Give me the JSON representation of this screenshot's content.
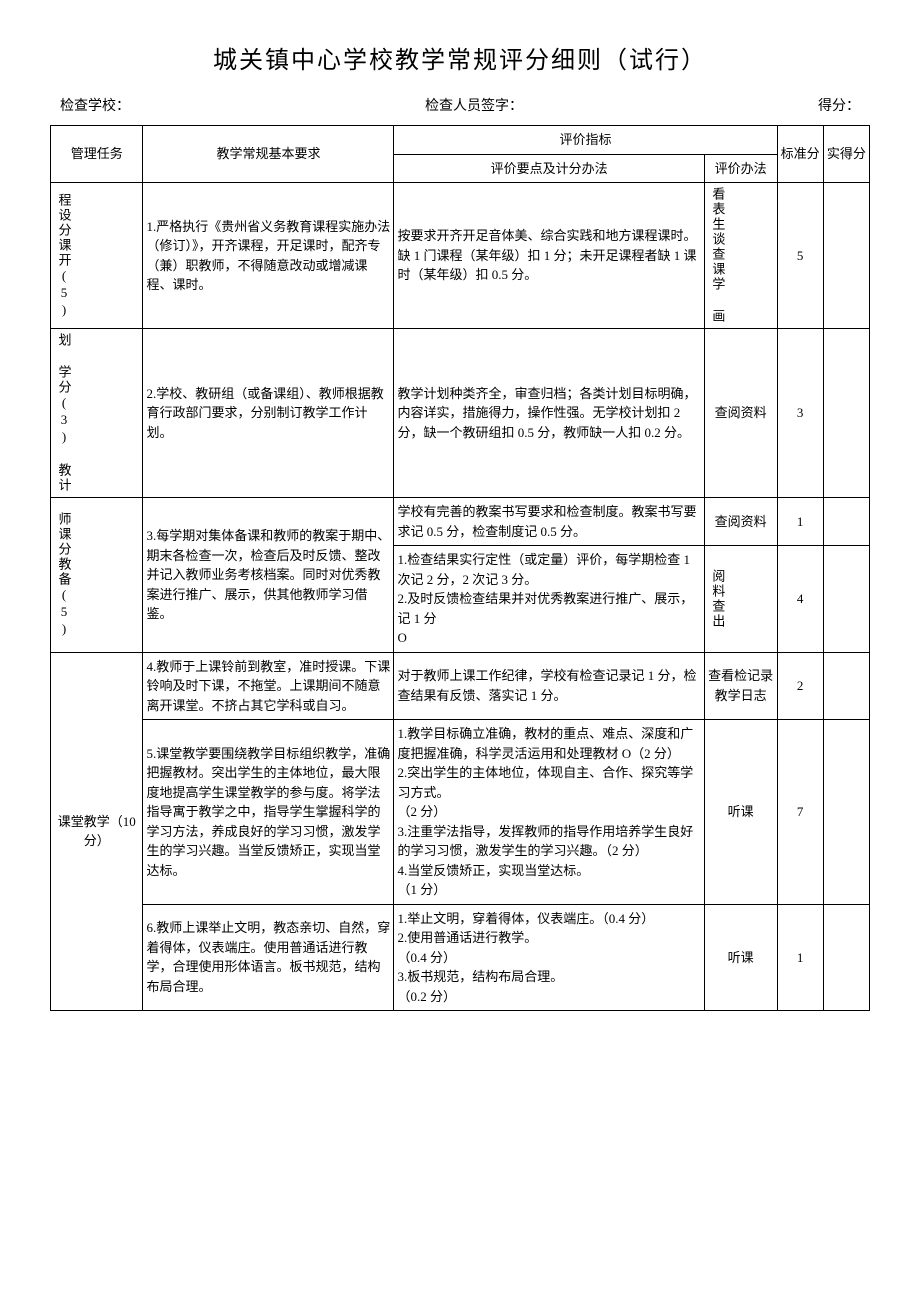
{
  "page": {
    "title": "城关镇中心学校教学常规评分细则（试行）",
    "header_school_label": "检查学校：",
    "header_signer_label": "检查人员签字：",
    "header_score_label": "得分：",
    "th_mgmt": "管理任务",
    "th_req": "教学常规基本要求",
    "th_indicator": "评价指标",
    "th_criteria": "评价要点及计分办法",
    "th_method": "评价办法",
    "th_std": "标准分",
    "th_act": "实得分"
  },
  "rows": [
    {
      "cat": "程设分课开(5)",
      "req": "1.严格执行《贵州省义务教育课程实施办法（修订）》，开齐课程，开足课时，配齐专（兼）职教师，不得随意改动或增减课程、课时。",
      "crit": "按要求开齐开足音体美、综合实践和地方课程课时。缺 1 门课程（某年级）扣 1 分；未开足课程者缺 1 课时（某年级）扣 0.5 分。",
      "method": "看表生谈查课学 画",
      "std": "5"
    },
    {
      "cat": "划 学分(3) 教计",
      "req": "2.学校、教研组（或备课组）、教师根据教育行政部门要求，分别制订教学工作计划。",
      "crit": "教学计划种类齐全，审查归档；各类计划目标明确，内容详实，措施得力，操作性强。无学校计划扣 2 分，缺一个教研组扣 0.5 分，教师缺一人扣 0.2 分。",
      "method": "查阅资料",
      "std": "3"
    },
    {
      "cat": "师课分教备(5)",
      "req": "3.每学期对集体备课和教师的教案于期中、期末各检查一次，检查后及时反馈、整改并记入教师业务考核档案。同时对优秀教案进行推广、展示，供其他教师学习借鉴。",
      "crit1": "学校有完善的教案书写要求和检查制度。教案书写要求记 0.5 分，检查制度记 0.5 分。",
      "method1": "查阅资料",
      "std1": "1",
      "crit2": "1.检查结果实行定性（或定量）评价，每学期检查 1 次记 2 分，2 次记 3 分。\n2.及时反馈检查结果并对优秀教案进行推广、展示，记 1 分\nO",
      "method2": "阅料查出",
      "std2": "4"
    },
    {
      "cat_main": "课堂教学（10分）",
      "req4": "4.教师于上课铃前到教室，准时授课。下课铃响及时下课，不拖堂。上课期间不随意离开课堂。不挤占其它学科或自习。",
      "crit4": "对于教师上课工作纪律，学校有检查记录记 1 分，检查结果有反馈、落实记 1 分。",
      "method4": "查看检记录教学日志",
      "std4": "2",
      "req5": "5.课堂教学要围绕教学目标组织教学，准确把握教材。突出学生的主体地位，最大限度地提高学生课堂教学的参与度。将学法指导寓于教学之中，指导学生掌握科学的学习方法，养成良好的学习习惯，激发学生的学习兴趣。当堂反馈矫正，实现当堂达标。",
      "crit5": "1.教学目标确立准确，教材的重点、难点、深度和广度把握准确，科学灵活运用和处理教材 O（2 分）\n2.突出学生的主体地位，体现自主、合作、探究等学习方式。\n（2 分）\n3.注重学法指导，发挥教师的指导作用培养学生良好的学习习惯，激发学生的学习兴趣。（2 分）\n4.当堂反馈矫正，实现当堂达标。\n（1 分）",
      "method5": "听课",
      "std5": "7",
      "req6": "6.教师上课举止文明，教态亲切、自然，穿着得体，仪表端庄。使用普通话进行教学，合理使用形体语言。板书规范，结构布局合理。",
      "crit6": "1.举止文明，穿着得体，仪表端庄。（0.4 分）\n2.使用普通话进行教学。\n（0.4 分）\n3.板书规范，结构布局合理。\n（0.2 分）",
      "method6": "听课",
      "std6": "1"
    }
  ]
}
